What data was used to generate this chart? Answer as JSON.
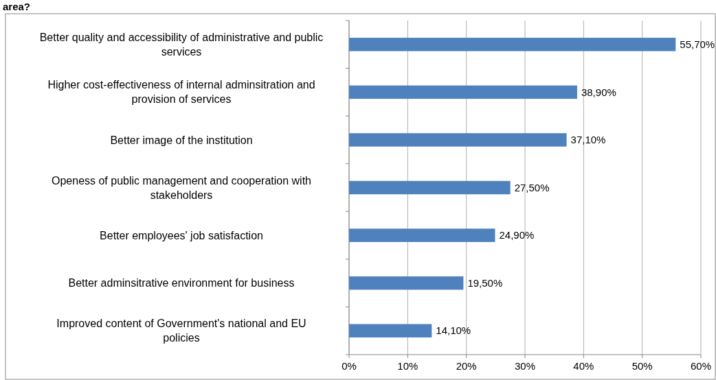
{
  "chart_data": {
    "type": "bar",
    "orientation": "horizontal",
    "title": "area?",
    "categories": [
      "Better quality and accessibility  of administrative and public services",
      "Higher cost-effectiveness of internal adminsitration and provision of services",
      "Better image of the institution",
      "Openess of public management and cooperation with stakeholders",
      "Better employees' job satisfaction",
      "Better adminsitrative environment for business",
      "Improved content of Government's national and EU policies"
    ],
    "values": [
      55.7,
      38.9,
      37.1,
      27.5,
      24.9,
      19.5,
      14.1
    ],
    "value_labels": [
      "55,70%",
      "38,90%",
      "37,10%",
      "27,50%",
      "24,90%",
      "19,50%",
      "14,10%"
    ],
    "color": "#4f81bd",
    "xlim": [
      0,
      60
    ],
    "xticks": [
      {
        "value": 0,
        "label": "0%"
      },
      {
        "value": 10,
        "label": "10%"
      },
      {
        "value": 20,
        "label": "20%"
      },
      {
        "value": 30,
        "label": "30%"
      },
      {
        "value": 40,
        "label": "40%"
      },
      {
        "value": 50,
        "label": "50%"
      },
      {
        "value": 60,
        "label": "60%"
      }
    ],
    "grid": "x"
  }
}
